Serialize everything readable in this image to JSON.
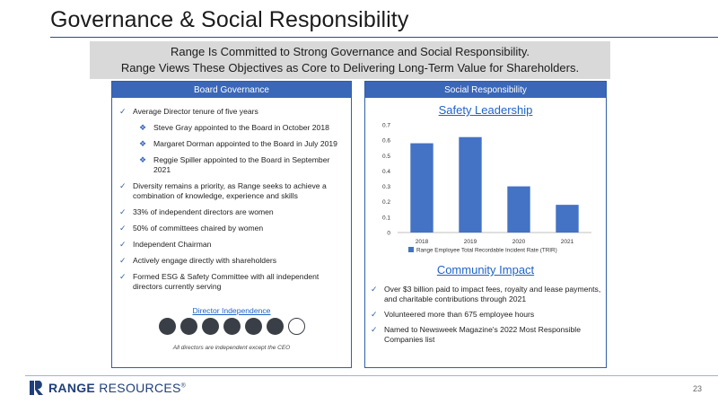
{
  "title": "Governance & Social Responsibility",
  "banner": {
    "line1": "Range Is Committed to Strong Governance and Social Responsibility.",
    "line2": "Range Views These Objectives as Core to Delivering Long-Term Value for Shareholders."
  },
  "board": {
    "header": "Board Governance",
    "items": [
      {
        "text": "Average Director tenure of five years",
        "level": 0
      },
      {
        "text": "Steve Gray appointed to the Board in October 2018",
        "level": 1
      },
      {
        "text": "Margaret Dorman appointed to the Board in July 2019",
        "level": 1
      },
      {
        "text": "Reggie Spiller appointed to the Board in September 2021",
        "level": 1
      },
      {
        "text": "Diversity remains a priority, as Range seeks to achieve a combination of knowledge, experience and skills",
        "level": 0
      },
      {
        "text": "33% of independent directors are women",
        "level": 0
      },
      {
        "text": "50% of committees chaired by women",
        "level": 0
      },
      {
        "text": "Independent Chairman",
        "level": 0
      },
      {
        "text": "Actively engage directly with shareholders",
        "level": 0
      },
      {
        "text": "Formed ESG & Safety Committee with all independent directors currently serving",
        "level": 0
      }
    ],
    "independence_title": "Director Independence",
    "independent_directors": 6,
    "non_independent_directors": 1,
    "independence_note": "All directors are independent except the CEO"
  },
  "social": {
    "header": "Social Responsibility",
    "safety_title": "Safety Leadership",
    "community_title": "Community Impact",
    "community_items": [
      "Over $3 billion paid to impact fees, royalty and lease payments, and charitable contributions through 2021",
      "Volunteered more than 675 employee hours",
      "Named to Newsweek Magazine's 2022 Most Responsible Companies list"
    ]
  },
  "chart_data": {
    "type": "bar",
    "categories": [
      "2018",
      "2019",
      "2020",
      "2021"
    ],
    "series": [
      {
        "name": "Range Employee Total Recordable Incident Rate (TRIR)",
        "values": [
          0.58,
          0.62,
          0.3,
          0.18
        ]
      }
    ],
    "ylim": [
      0,
      0.7
    ],
    "yticks": [
      "0",
      "0.1",
      "0.2",
      "0.3",
      "0.4",
      "0.5",
      "0.6",
      "0.7"
    ],
    "grid": false,
    "legend": "bottom",
    "bar_color": "#4472c4"
  },
  "logo": {
    "brand": "RANGE",
    "suffix": " RESOURCES",
    "mark": "®"
  },
  "page_number": "23",
  "colors": {
    "accent": "#3a67b8",
    "link": "#1f62c9",
    "banner": "#d9d9d9"
  }
}
